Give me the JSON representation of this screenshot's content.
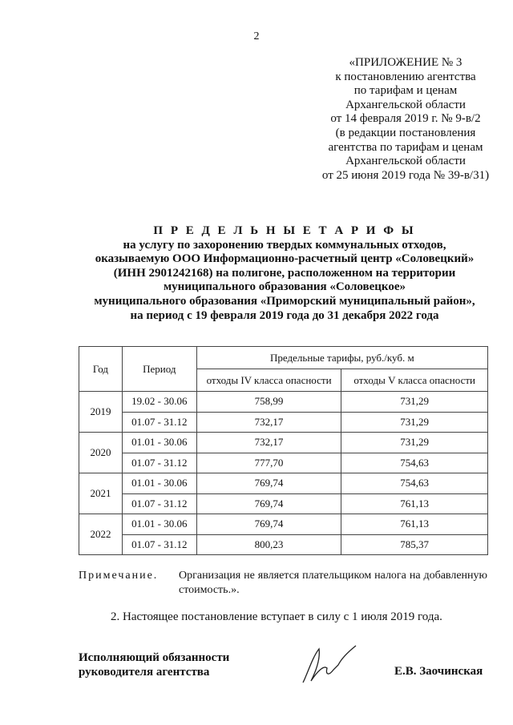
{
  "page_number": "2",
  "appendix": [
    "«ПРИЛОЖЕНИЕ № 3",
    "к постановлению агентства",
    "по тарифам и ценам",
    "Архангельской области",
    "от 14 февраля 2019 г. № 9-в/2",
    "(в редакции постановления",
    "агентства по тарифам и ценам",
    "Архангельской области",
    "от 25 июня 2019 года № 39-в/31)"
  ],
  "title": [
    "П Р Е Д Е Л Ь Н Ы Е   Т А Р И Ф Ы",
    "на услугу по захоронению твердых коммунальных отходов,",
    "оказываемую ООО Информационно-расчетный центр «Соловецкий»",
    "(ИНН 2901242168) на полигоне, расположенном на территории",
    "муниципального образования «Соловецкое»",
    "муниципального образования «Приморский муниципальный район»,",
    "на период с 19 февраля 2019 года до 31 декабря 2022 года"
  ],
  "table": {
    "headers": {
      "year": "Год",
      "period": "Период",
      "tariffs": "Предельные тарифы, руб./куб. м",
      "class4": "отходы IV класса опасности",
      "class5": "отходы V класса опасности"
    },
    "groups": [
      {
        "year": "2019",
        "rows": [
          [
            "19.02 - 30.06",
            "758,99",
            "731,29"
          ],
          [
            "01.07 - 31.12",
            "732,17",
            "731,29"
          ]
        ]
      },
      {
        "year": "2020",
        "rows": [
          [
            "01.01 - 30.06",
            "732,17",
            "731,29"
          ],
          [
            "01.07 - 31.12",
            "777,70",
            "754,63"
          ]
        ]
      },
      {
        "year": "2021",
        "rows": [
          [
            "01.01 - 30.06",
            "769,74",
            "754,63"
          ],
          [
            "01.07 - 31.12",
            "769,74",
            "761,13"
          ]
        ]
      },
      {
        "year": "2022",
        "rows": [
          [
            "01.01 - 30.06",
            "769,74",
            "761,13"
          ],
          [
            "01.07 - 31.12",
            "800,23",
            "785,37"
          ]
        ]
      }
    ]
  },
  "note": {
    "label": "Примечание.",
    "text": "Организация не является плательщиком налога на добавленную стоимость.»."
  },
  "paragraph": "2. Настоящее постановление вступает в силу с 1 июля 2019 года.",
  "signature": {
    "position": [
      "Исполняющий обязанности",
      "руководителя агентства"
    ],
    "name": "Е.В. Заочинская"
  }
}
